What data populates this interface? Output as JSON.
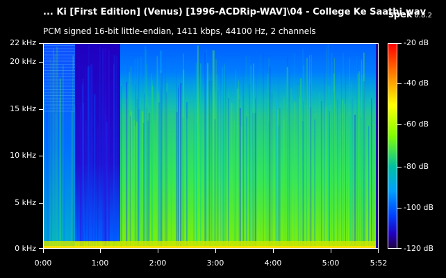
{
  "window": {
    "file_title": "... Ki [First Edition] (Venus) [1996-ACDRip-WAV]\\04 - College Ke Saathi.wav",
    "app_name": "spek",
    "app_version": "0.8.2",
    "stream_info": "PCM signed 16-bit little-endian, 1411 kbps, 44100 Hz, 2 channels"
  },
  "spectrogram": {
    "frequency_axis": [
      "22 kHz",
      "20 kHz",
      "15 kHz",
      "10 kHz",
      "5 kHz",
      "0 kHz"
    ],
    "time_axis": [
      "0:00",
      "1:00",
      "2:00",
      "3:00",
      "4:00",
      "5:00",
      "5:52"
    ],
    "level_axis": [
      "-20 dB",
      "-40 dB",
      "-60 dB",
      "-80 dB",
      "-100 dB",
      "-120 dB"
    ],
    "duration_seconds": 352,
    "max_frequency_khz": 22,
    "level_range_db": [
      -120,
      -20
    ],
    "palette": [
      "#ff0000",
      "#ff8000",
      "#ffff00",
      "#80ff00",
      "#00c0a0",
      "#00a0ff",
      "#0040ff",
      "#2000c0",
      "#300060"
    ]
  }
}
